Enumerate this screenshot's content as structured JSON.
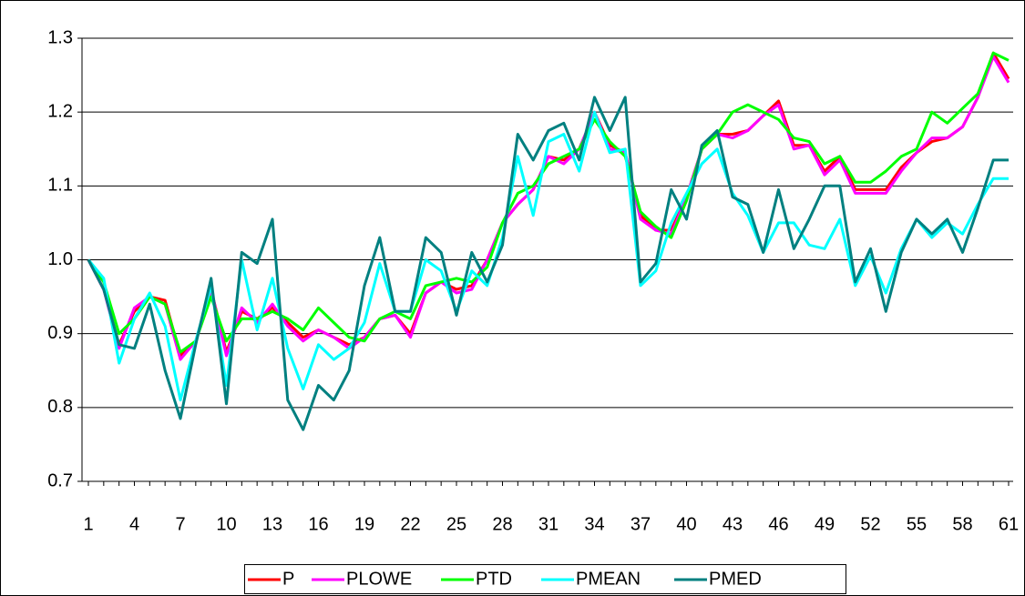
{
  "chart_data": {
    "type": "line",
    "categories": [
      "1",
      null,
      null,
      "4",
      null,
      null,
      "7",
      null,
      null,
      "10",
      null,
      null,
      "13",
      null,
      null,
      "16",
      null,
      null,
      "19",
      null,
      null,
      "22",
      null,
      null,
      "25",
      null,
      null,
      "28",
      null,
      null,
      "31",
      null,
      null,
      "34",
      null,
      null,
      "37",
      null,
      null,
      "40",
      null,
      null,
      "43",
      null,
      null,
      "46",
      null,
      null,
      "49",
      null,
      null,
      "52",
      null,
      null,
      "55",
      null,
      null,
      "58",
      null,
      null,
      "61"
    ],
    "ylim": [
      0.7,
      1.3
    ],
    "yticks": [
      0.7,
      0.8,
      0.9,
      {
        "value": 1,
        "label": "1.0"
      },
      1.1,
      1.2,
      1.3
    ],
    "grid": true,
    "legend": "bottom",
    "series": [
      {
        "name": "P",
        "color": "#ff0000",
        "values": [
          1.0,
          0.96,
          0.885,
          0.93,
          0.95,
          0.945,
          0.87,
          0.89,
          0.96,
          0.875,
          0.93,
          0.92,
          0.935,
          0.915,
          0.895,
          0.905,
          0.895,
          0.885,
          0.895,
          0.92,
          0.925,
          0.9,
          0.955,
          0.97,
          0.96,
          0.965,
          1.0,
          1.05,
          1.075,
          1.095,
          1.14,
          1.135,
          1.15,
          1.2,
          1.155,
          1.145,
          1.06,
          1.04,
          1.04,
          1.085,
          1.15,
          1.17,
          1.17,
          1.175,
          1.195,
          1.215,
          1.155,
          1.155,
          1.12,
          1.14,
          1.095,
          1.095,
          1.095,
          1.125,
          1.145,
          1.16,
          1.165,
          1.18,
          1.22,
          1.28,
          1.245
        ]
      },
      {
        "name": "PLOWE",
        "color": "#ff00ff",
        "values": [
          1.0,
          0.96,
          0.88,
          0.935,
          0.95,
          0.94,
          0.865,
          0.89,
          0.96,
          0.87,
          0.935,
          0.915,
          0.94,
          0.91,
          0.89,
          0.905,
          0.895,
          0.88,
          0.895,
          0.92,
          0.925,
          0.895,
          0.955,
          0.97,
          0.955,
          0.96,
          1.0,
          1.05,
          1.075,
          1.095,
          1.14,
          1.13,
          1.15,
          1.2,
          1.15,
          1.145,
          1.055,
          1.04,
          1.035,
          1.085,
          1.15,
          1.17,
          1.165,
          1.175,
          1.195,
          1.21,
          1.15,
          1.155,
          1.115,
          1.135,
          1.09,
          1.09,
          1.09,
          1.12,
          1.145,
          1.165,
          1.165,
          1.18,
          1.22,
          1.275,
          1.24
        ]
      },
      {
        "name": "PTD",
        "color": "#00ff00",
        "values": [
          1.0,
          0.97,
          0.9,
          0.92,
          0.95,
          0.94,
          0.875,
          0.89,
          0.95,
          0.89,
          0.92,
          0.92,
          0.93,
          0.92,
          0.905,
          0.935,
          0.915,
          0.895,
          0.89,
          0.92,
          0.93,
          0.92,
          0.965,
          0.97,
          0.975,
          0.97,
          0.99,
          1.05,
          1.09,
          1.1,
          1.13,
          1.14,
          1.15,
          1.19,
          1.16,
          1.14,
          1.065,
          1.045,
          1.03,
          1.08,
          1.15,
          1.17,
          1.2,
          1.21,
          1.2,
          1.19,
          1.165,
          1.16,
          1.13,
          1.14,
          1.105,
          1.105,
          1.12,
          1.14,
          1.15,
          1.2,
          1.185,
          1.205,
          1.225,
          1.28,
          1.27
        ]
      },
      {
        "name": "PMEAN",
        "color": "#00ffff",
        "values": [
          1.0,
          0.975,
          0.86,
          0.92,
          0.955,
          0.91,
          0.81,
          0.89,
          0.965,
          0.83,
          1.0,
          0.905,
          0.975,
          0.88,
          0.825,
          0.885,
          0.865,
          0.88,
          0.915,
          0.995,
          0.93,
          0.93,
          1.0,
          0.985,
          0.93,
          0.985,
          0.965,
          1.03,
          1.14,
          1.06,
          1.16,
          1.17,
          1.12,
          1.2,
          1.145,
          1.15,
          0.965,
          0.985,
          1.05,
          1.09,
          1.13,
          1.15,
          1.09,
          1.06,
          1.01,
          1.05,
          1.05,
          1.02,
          1.015,
          1.055,
          0.965,
          1.005,
          0.955,
          1.015,
          1.055,
          1.03,
          1.05,
          1.035,
          1.075,
          1.11,
          1.11
        ]
      },
      {
        "name": "PMED",
        "color": "#008080",
        "values": [
          1.0,
          0.96,
          0.885,
          0.88,
          0.94,
          0.85,
          0.785,
          0.885,
          0.975,
          0.805,
          1.01,
          0.995,
          1.055,
          0.81,
          0.77,
          0.83,
          0.81,
          0.85,
          0.965,
          1.03,
          0.93,
          0.93,
          1.03,
          1.01,
          0.925,
          1.01,
          0.97,
          1.02,
          1.17,
          1.135,
          1.175,
          1.185,
          1.135,
          1.22,
          1.175,
          1.22,
          0.97,
          0.995,
          1.095,
          1.055,
          1.155,
          1.175,
          1.085,
          1.075,
          1.01,
          1.095,
          1.015,
          1.055,
          1.1,
          1.1,
          0.97,
          1.015,
          0.93,
          1.01,
          1.055,
          1.035,
          1.055,
          1.01,
          1.07,
          1.135,
          1.135
        ]
      }
    ]
  }
}
